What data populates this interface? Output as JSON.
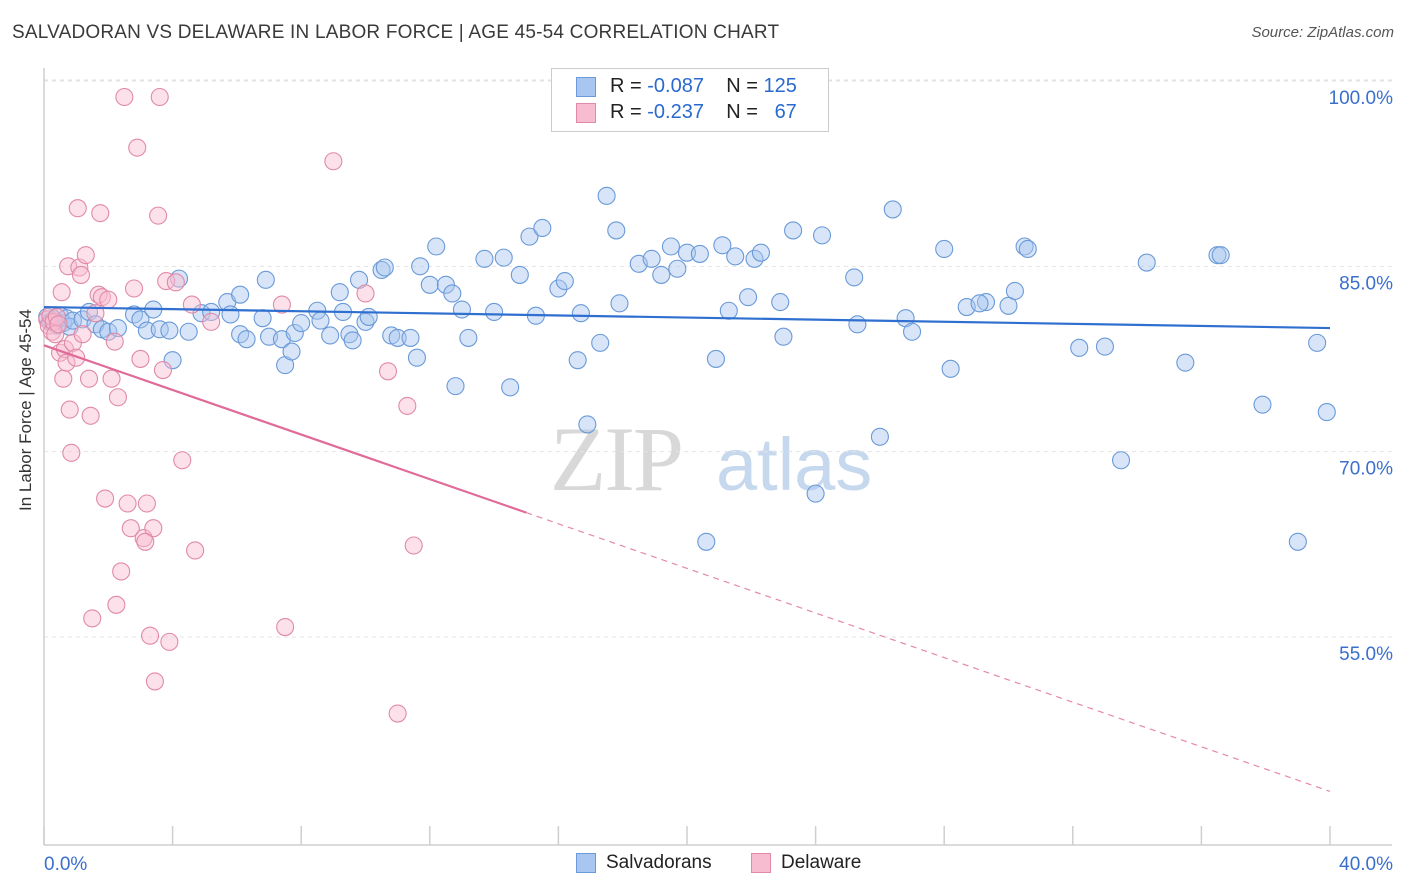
{
  "header": {
    "title": "SALVADORAN VS DELAWARE IN LABOR FORCE | AGE 45-54 CORRELATION CHART",
    "source": "Source: ZipAtlas.com"
  },
  "legend": {
    "rows": [
      {
        "r_label": "R =",
        "r_value": "-0.087",
        "n_label": "N =",
        "n_value": "125",
        "color": "#a9c6f0",
        "border": "#6a9ad8"
      },
      {
        "r_label": "R =",
        "r_value": "-0.237",
        "n_label": "N =",
        "n_value": "67",
        "color": "#f8bcd0",
        "border": "#e08aa8"
      }
    ]
  },
  "bottom_legend": [
    {
      "label": "Salvadorans",
      "color": "#a9c6f0",
      "border": "#6a9ad8"
    },
    {
      "label": "Delaware",
      "color": "#f8bcd0",
      "border": "#e08aa8"
    }
  ],
  "watermark": {
    "zip": "ZIP",
    "atlas": "atlas"
  },
  "chart_data": {
    "type": "scatter",
    "title": "SALVADORAN VS DELAWARE IN LABOR FORCE | AGE 45-54 CORRELATION CHART",
    "xlabel": "",
    "ylabel": "In Labor Force | Age 45-54",
    "xlim": [
      0,
      40
    ],
    "ylim": [
      40,
      102
    ],
    "x_tick_labels": [
      "0.0%",
      "40.0%"
    ],
    "y_ticks": [
      55,
      70,
      85,
      100
    ],
    "y_tick_labels": [
      "55.0%",
      "70.0%",
      "85.0%",
      "100.0%"
    ],
    "grid": true,
    "legend_position": "top-center",
    "series": [
      {
        "name": "Salvadorans",
        "color": "#6a9ad8",
        "fill": "rgba(169,198,240,0.45)",
        "trend": {
          "x": [
            0,
            40
          ],
          "y": [
            83.0,
            81.3
          ],
          "dashed_from": null,
          "color": "#2f6fcf"
        },
        "points": [
          [
            0.1,
            82.2
          ],
          [
            0.2,
            81.8
          ],
          [
            0.3,
            82.0
          ],
          [
            0.4,
            81.5
          ],
          [
            0.5,
            82.3
          ],
          [
            0.6,
            81.7
          ],
          [
            0.7,
            82.1
          ],
          [
            0.8,
            81.4
          ],
          [
            0.9,
            81.9
          ],
          [
            1.2,
            82.0
          ],
          [
            1.4,
            82.6
          ],
          [
            1.6,
            81.6
          ],
          [
            1.8,
            81.2
          ],
          [
            2.0,
            81.0
          ],
          [
            2.3,
            81.3
          ],
          [
            2.8,
            82.4
          ],
          [
            3.0,
            82.0
          ],
          [
            3.2,
            81.1
          ],
          [
            3.4,
            82.8
          ],
          [
            3.6,
            81.2
          ],
          [
            3.9,
            81.1
          ],
          [
            4.0,
            78.7
          ],
          [
            4.2,
            85.3
          ],
          [
            4.5,
            81.0
          ],
          [
            4.9,
            82.5
          ],
          [
            5.2,
            82.6
          ],
          [
            5.7,
            83.4
          ],
          [
            5.8,
            82.4
          ],
          [
            6.1,
            84.0
          ],
          [
            6.1,
            80.8
          ],
          [
            6.3,
            80.4
          ],
          [
            6.8,
            82.1
          ],
          [
            6.9,
            85.2
          ],
          [
            7.0,
            80.6
          ],
          [
            7.4,
            80.4
          ],
          [
            7.5,
            78.3
          ],
          [
            7.7,
            79.4
          ],
          [
            7.8,
            80.9
          ],
          [
            8.0,
            81.7
          ],
          [
            8.5,
            82.7
          ],
          [
            8.6,
            81.9
          ],
          [
            8.9,
            80.7
          ],
          [
            9.2,
            84.2
          ],
          [
            9.3,
            82.6
          ],
          [
            9.5,
            80.8
          ],
          [
            9.6,
            80.3
          ],
          [
            9.8,
            85.2
          ],
          [
            10.0,
            81.8
          ],
          [
            10.1,
            82.2
          ],
          [
            10.5,
            86.0
          ],
          [
            10.6,
            86.2
          ],
          [
            10.8,
            80.7
          ],
          [
            11.0,
            80.5
          ],
          [
            11.4,
            80.5
          ],
          [
            11.6,
            78.9
          ],
          [
            11.7,
            86.3
          ],
          [
            12.0,
            84.8
          ],
          [
            12.2,
            87.9
          ],
          [
            12.5,
            84.8
          ],
          [
            12.7,
            84.1
          ],
          [
            12.8,
            76.6
          ],
          [
            13.0,
            82.8
          ],
          [
            13.2,
            80.5
          ],
          [
            13.7,
            86.9
          ],
          [
            14.0,
            82.6
          ],
          [
            14.3,
            87.0
          ],
          [
            14.5,
            76.5
          ],
          [
            14.8,
            85.6
          ],
          [
            15.1,
            88.7
          ],
          [
            15.3,
            82.3
          ],
          [
            15.5,
            89.4
          ],
          [
            16.0,
            84.5
          ],
          [
            16.2,
            85.1
          ],
          [
            16.6,
            78.7
          ],
          [
            16.7,
            82.5
          ],
          [
            16.9,
            73.5
          ],
          [
            17.3,
            80.1
          ],
          [
            17.5,
            92.0
          ],
          [
            17.8,
            89.2
          ],
          [
            17.9,
            83.3
          ],
          [
            18.5,
            86.5
          ],
          [
            18.9,
            86.9
          ],
          [
            19.2,
            85.6
          ],
          [
            19.5,
            87.9
          ],
          [
            19.7,
            86.1
          ],
          [
            20.0,
            87.4
          ],
          [
            20.4,
            87.3
          ],
          [
            20.6,
            64.0
          ],
          [
            20.9,
            78.8
          ],
          [
            21.1,
            88.0
          ],
          [
            21.3,
            82.7
          ],
          [
            21.5,
            87.1
          ],
          [
            21.9,
            83.8
          ],
          [
            22.1,
            86.9
          ],
          [
            22.3,
            87.4
          ],
          [
            22.9,
            83.4
          ],
          [
            23.0,
            80.6
          ],
          [
            23.3,
            89.2
          ],
          [
            24.2,
            88.8
          ],
          [
            24.0,
            67.9
          ],
          [
            25.2,
            85.4
          ],
          [
            25.3,
            81.6
          ],
          [
            26.0,
            72.5
          ],
          [
            26.4,
            90.9
          ],
          [
            26.8,
            82.1
          ],
          [
            27.0,
            81.0
          ],
          [
            28.0,
            87.7
          ],
          [
            28.2,
            78.0
          ],
          [
            28.7,
            83.0
          ],
          [
            29.3,
            83.4
          ],
          [
            29.1,
            83.3
          ],
          [
            30.0,
            83.1
          ],
          [
            30.2,
            84.3
          ],
          [
            30.5,
            87.9
          ],
          [
            30.6,
            87.7
          ],
          [
            32.2,
            79.7
          ],
          [
            33.0,
            79.8
          ],
          [
            33.5,
            70.6
          ],
          [
            34.3,
            86.6
          ],
          [
            35.5,
            78.5
          ],
          [
            36.5,
            87.2
          ],
          [
            36.6,
            87.2
          ],
          [
            37.9,
            75.1
          ],
          [
            39.0,
            64.0
          ],
          [
            39.6,
            80.1
          ],
          [
            39.9,
            74.5
          ]
        ]
      },
      {
        "name": "Delaware",
        "color": "#e08aa8",
        "fill": "rgba(248,188,208,0.45)",
        "trend": {
          "x": [
            0,
            40
          ],
          "y": [
            79.9,
            43.8
          ],
          "dashed_from": 15.0,
          "color": "#e06a98"
        },
        "points": [
          [
            0.1,
            82.0
          ],
          [
            0.15,
            81.5
          ],
          [
            0.2,
            82.3
          ],
          [
            0.25,
            81.0
          ],
          [
            0.3,
            81.8
          ],
          [
            0.35,
            80.8
          ],
          [
            0.4,
            82.2
          ],
          [
            0.45,
            81.6
          ],
          [
            0.5,
            79.3
          ],
          [
            0.55,
            84.2
          ],
          [
            0.6,
            77.2
          ],
          [
            0.65,
            79.6
          ],
          [
            0.7,
            78.5
          ],
          [
            0.75,
            86.3
          ],
          [
            0.8,
            74.7
          ],
          [
            0.85,
            71.2
          ],
          [
            0.9,
            80.1
          ],
          [
            1.0,
            78.9
          ],
          [
            1.05,
            91.0
          ],
          [
            1.1,
            86.2
          ],
          [
            1.15,
            85.6
          ],
          [
            1.2,
            80.8
          ],
          [
            1.3,
            87.2
          ],
          [
            1.4,
            77.2
          ],
          [
            1.45,
            74.2
          ],
          [
            1.5,
            57.8
          ],
          [
            1.6,
            82.5
          ],
          [
            1.7,
            84.0
          ],
          [
            1.75,
            90.6
          ],
          [
            1.8,
            83.8
          ],
          [
            1.9,
            67.5
          ],
          [
            2.0,
            83.6
          ],
          [
            2.1,
            77.2
          ],
          [
            2.2,
            80.2
          ],
          [
            2.25,
            58.9
          ],
          [
            2.3,
            75.7
          ],
          [
            2.4,
            61.6
          ],
          [
            2.5,
            100.0
          ],
          [
            2.6,
            67.1
          ],
          [
            2.7,
            65.1
          ],
          [
            2.8,
            84.5
          ],
          [
            2.9,
            95.9
          ],
          [
            3.0,
            78.8
          ],
          [
            3.1,
            64.3
          ],
          [
            3.2,
            67.1
          ],
          [
            3.3,
            56.4
          ],
          [
            3.4,
            65.1
          ],
          [
            3.45,
            52.7
          ],
          [
            3.55,
            90.4
          ],
          [
            3.6,
            100.0
          ],
          [
            3.7,
            77.9
          ],
          [
            3.8,
            85.1
          ],
          [
            3.9,
            55.9
          ],
          [
            4.1,
            85.0
          ],
          [
            4.3,
            70.6
          ],
          [
            4.6,
            83.2
          ],
          [
            4.7,
            63.3
          ],
          [
            5.2,
            81.8
          ],
          [
            7.4,
            83.2
          ],
          [
            7.5,
            57.1
          ],
          [
            9.0,
            94.8
          ],
          [
            10.0,
            84.1
          ],
          [
            10.7,
            77.8
          ],
          [
            11.0,
            50.1
          ],
          [
            11.3,
            75.0
          ],
          [
            11.5,
            63.7
          ],
          [
            3.15,
            64.0
          ]
        ]
      }
    ]
  }
}
